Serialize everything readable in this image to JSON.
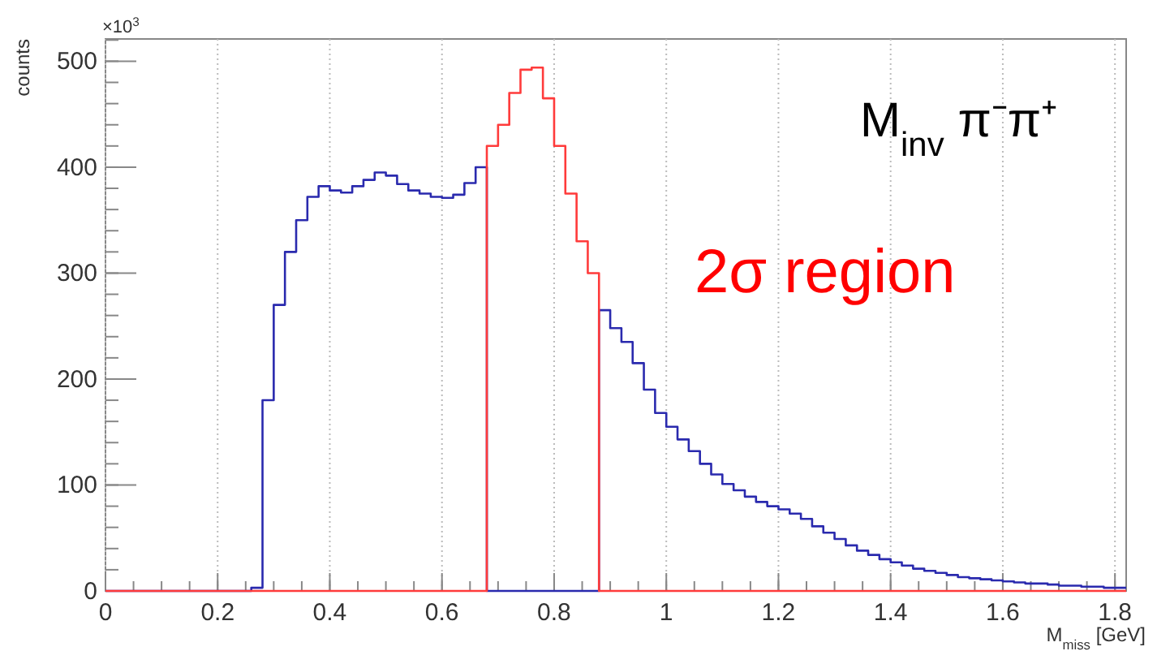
{
  "chart_data": {
    "type": "histogram",
    "xlabel": "M$_{miss}$ [GeV]",
    "ylabel": "counts",
    "annotations": [
      "×10$^{3}$",
      "M$_{inv}$ π⁻π⁺",
      "2σ region"
    ],
    "bins": [
      0,
      0.02,
      0.04,
      0.06,
      0.08,
      0.1,
      0.12,
      0.14,
      0.16,
      0.18,
      0.2,
      0.22,
      0.24,
      0.26,
      0.28,
      0.3,
      0.32,
      0.34,
      0.36,
      0.38,
      0.4,
      0.42,
      0.44,
      0.46,
      0.48,
      0.5,
      0.52,
      0.54,
      0.56,
      0.58,
      0.6,
      0.62,
      0.64,
      0.66,
      0.68,
      0.7,
      0.72,
      0.74,
      0.76,
      0.78,
      0.8,
      0.82,
      0.84,
      0.86,
      0.88,
      0.9,
      0.92,
      0.94,
      0.96,
      0.98,
      1,
      1.02,
      1.04,
      1.06,
      1.08,
      1.1,
      1.12,
      1.14,
      1.16,
      1.18,
      1.2,
      1.22,
      1.24,
      1.26,
      1.28,
      1.3,
      1.32,
      1.34,
      1.36,
      1.38,
      1.4,
      1.42,
      1.44,
      1.46,
      1.48,
      1.5,
      1.52,
      1.54,
      1.56,
      1.58,
      1.6,
      1.62,
      1.64,
      1.66,
      1.68,
      1.7,
      1.72,
      1.74,
      1.76,
      1.78,
      1.8,
      1.82
    ],
    "series": [
      {
        "color": "#2a2aae",
        "values": [
          0,
          0,
          0,
          0,
          0,
          0,
          0,
          0,
          0,
          0,
          0,
          0,
          0,
          3,
          180,
          270,
          320,
          350,
          372,
          382,
          378,
          376,
          382,
          388,
          395,
          392,
          384,
          378,
          375,
          372,
          371,
          374,
          385,
          400,
          0,
          0,
          0,
          0,
          0,
          0,
          0,
          0,
          0,
          0,
          265,
          248,
          235,
          215,
          190,
          168,
          155,
          143,
          132,
          120,
          110,
          101,
          95,
          89,
          84,
          80,
          77,
          73,
          68,
          61,
          55,
          49,
          43,
          38,
          34,
          30,
          27,
          24,
          21,
          19,
          17,
          15,
          13,
          12,
          11,
          10,
          9,
          8,
          7,
          7,
          6,
          5,
          5,
          4,
          4,
          3,
          3
        ]
      },
      {
        "color": "#ff3b3b",
        "values": [
          0,
          0,
          0,
          0,
          0,
          0,
          0,
          0,
          0,
          0,
          0,
          0,
          0,
          0,
          0,
          0,
          0,
          0,
          0,
          0,
          0,
          0,
          0,
          0,
          0,
          0,
          0,
          0,
          0,
          0,
          0,
          0,
          0,
          0,
          420,
          440,
          470,
          492,
          494,
          465,
          420,
          375,
          330,
          300,
          0,
          0,
          0,
          0,
          0,
          0,
          0,
          0,
          0,
          0,
          0,
          0,
          0,
          0,
          0,
          0,
          0,
          0,
          0,
          0,
          0,
          0,
          0,
          0,
          0,
          0,
          0,
          0,
          0,
          0,
          0,
          0,
          0,
          0,
          0,
          0,
          0,
          0,
          0,
          0,
          0,
          0,
          0,
          0,
          0,
          0,
          0
        ]
      }
    ],
    "xlim": [
      0,
      1.82
    ],
    "ylim": [
      0,
      521
    ],
    "xticks": [
      0,
      0.2,
      0.4,
      0.6,
      0.8,
      1,
      1.2,
      1.4,
      1.6,
      1.8
    ],
    "yticks": [
      0,
      100,
      200,
      300,
      400,
      500
    ],
    "grid": "x"
  }
}
